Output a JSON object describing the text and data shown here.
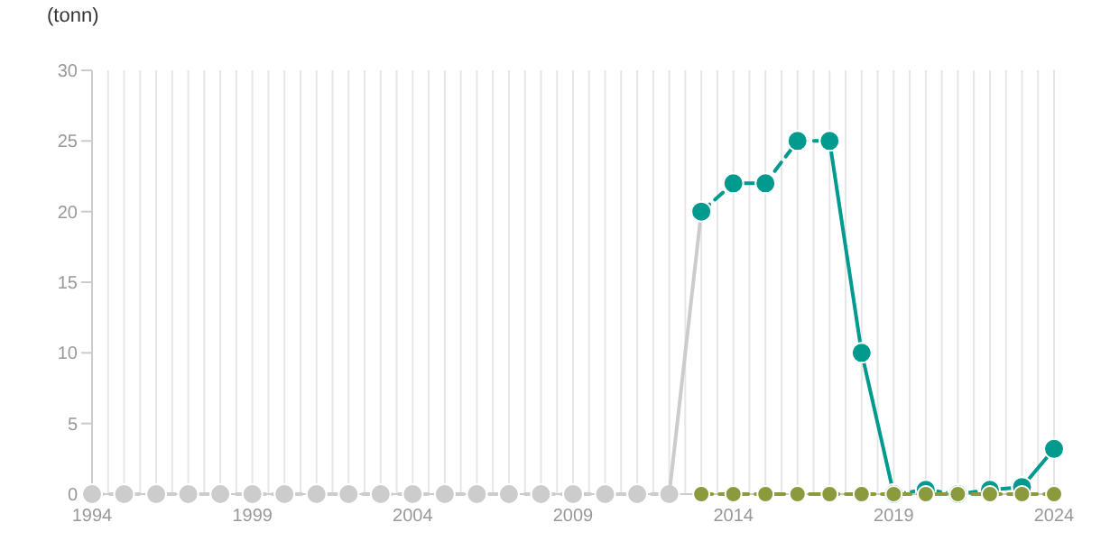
{
  "chart_data": {
    "type": "line",
    "ylabel": "(tonn)",
    "xlim": [
      1994,
      2024
    ],
    "ylim": [
      0,
      30
    ],
    "yticks": [
      0,
      5,
      10,
      15,
      20,
      25,
      30
    ],
    "grid": "x",
    "xticks": [
      1994,
      {
        "value": 1994.5,
        "label": null
      },
      {
        "value": 1995,
        "label": null
      },
      {
        "value": 1995.5,
        "label": null
      },
      {
        "value": 1996,
        "label": null
      },
      {
        "value": 1996.5,
        "label": null
      },
      {
        "value": 1997,
        "label": null
      },
      {
        "value": 1997.5,
        "label": null
      },
      {
        "value": 1998,
        "label": null
      },
      {
        "value": 1998.5,
        "label": null
      },
      1999,
      {
        "value": 1999.5,
        "label": null
      },
      {
        "value": 2000,
        "label": null
      },
      {
        "value": 2000.5,
        "label": null
      },
      {
        "value": 2001,
        "label": null
      },
      {
        "value": 2001.5,
        "label": null
      },
      {
        "value": 2002,
        "label": null
      },
      {
        "value": 2002.5,
        "label": null
      },
      {
        "value": 2003,
        "label": null
      },
      {
        "value": 2003.5,
        "label": null
      },
      2004,
      {
        "value": 2004.5,
        "label": null
      },
      {
        "value": 2005,
        "label": null
      },
      {
        "value": 2005.5,
        "label": null
      },
      {
        "value": 2006,
        "label": null
      },
      {
        "value": 2006.5,
        "label": null
      },
      {
        "value": 2007,
        "label": null
      },
      {
        "value": 2007.5,
        "label": null
      },
      {
        "value": 2008,
        "label": null
      },
      {
        "value": 2008.5,
        "label": null
      },
      2009,
      {
        "value": 2009.5,
        "label": null
      },
      {
        "value": 2010,
        "label": null
      },
      {
        "value": 2010.5,
        "label": null
      },
      {
        "value": 2011,
        "label": null
      },
      {
        "value": 2011.5,
        "label": null
      },
      {
        "value": 2012,
        "label": null
      },
      {
        "value": 2012.5,
        "label": null
      },
      {
        "value": 2013,
        "label": null
      },
      {
        "value": 2013.5,
        "label": null
      },
      2014,
      {
        "value": 2014.5,
        "label": null
      },
      {
        "value": 2015,
        "label": null
      },
      {
        "value": 2015.5,
        "label": null
      },
      {
        "value": 2016,
        "label": null
      },
      {
        "value": 2016.5,
        "label": null
      },
      {
        "value": 2017,
        "label": null
      },
      {
        "value": 2017.5,
        "label": null
      },
      {
        "value": 2018,
        "label": null
      },
      {
        "value": 2018.5,
        "label": null
      },
      2019,
      {
        "value": 2019.5,
        "label": null
      },
      {
        "value": 2020,
        "label": null
      },
      {
        "value": 2020.5,
        "label": null
      },
      {
        "value": 2021,
        "label": null
      },
      {
        "value": 2021.5,
        "label": null
      },
      {
        "value": 2022,
        "label": null
      },
      {
        "value": 2022.5,
        "label": null
      },
      {
        "value": 2023,
        "label": null
      },
      {
        "value": 2023.5,
        "label": null
      },
      2024
    ],
    "series": [
      {
        "color": "#cccccc",
        "line_style": "dashed",
        "marker": "circle",
        "x": [
          1994,
          1995,
          1996,
          1997,
          1998,
          1999,
          2000,
          2001,
          2002,
          2003,
          2004,
          2005,
          2006,
          2007,
          2008,
          2009,
          2010,
          2011,
          2012
        ],
        "values": [
          0,
          0,
          0,
          0,
          0,
          0,
          0,
          0,
          0,
          0,
          0,
          0,
          0,
          0,
          0,
          0,
          0,
          0,
          0
        ]
      },
      {
        "color": "#cccccc",
        "line_style": "solid",
        "marker": "none",
        "x": [
          2012,
          2013
        ],
        "values": [
          0,
          20
        ]
      },
      {
        "color": "#009a8e",
        "line_style": "dashed",
        "marker": "circle",
        "x": [
          2013,
          2014,
          2015,
          2016,
          2017
        ],
        "values": [
          20,
          22,
          22,
          25,
          25
        ]
      },
      {
        "color": "#009a8e",
        "line_style": "solid",
        "marker": "circle",
        "x": [
          2017,
          2018,
          2019
        ],
        "values": [
          25,
          10,
          0
        ]
      },
      {
        "color": "#009a8e",
        "line_style": "dashed",
        "marker": "circle",
        "x": [
          2019,
          2020,
          2021,
          2022,
          2023
        ],
        "values": [
          0,
          0.3,
          0,
          0.3,
          0.5
        ]
      },
      {
        "color": "#009a8e",
        "line_style": "solid",
        "marker": "circle",
        "x": [
          2023,
          2024
        ],
        "values": [
          0.5,
          3.2
        ]
      },
      {
        "color": "#8a9a3c",
        "line_style": "dashed",
        "marker": "circle",
        "x": [
          2013,
          2014,
          2015,
          2016,
          2017,
          2018,
          2019,
          2020,
          2021,
          2022,
          2023,
          2024
        ],
        "values": [
          0,
          0,
          0,
          0,
          0,
          0,
          0,
          0,
          0,
          0,
          0,
          0
        ]
      }
    ]
  }
}
